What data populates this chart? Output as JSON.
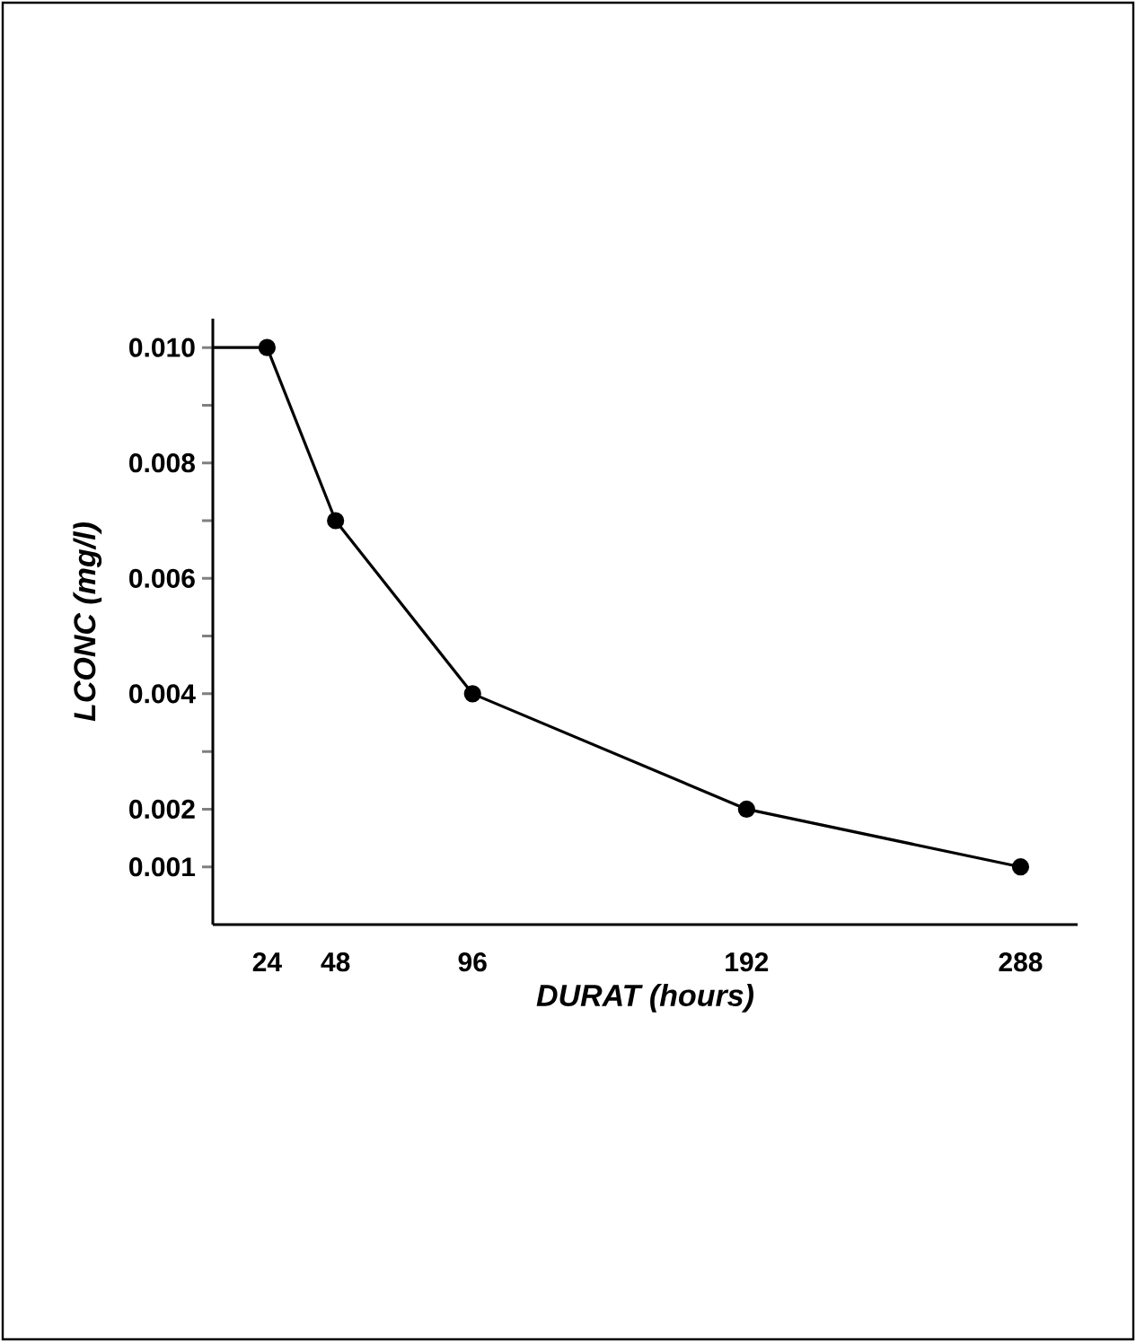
{
  "chart_data": {
    "type": "line",
    "xlabel": "DURAT (hours)",
    "ylabel": "LCONC (mg/l)",
    "xlim": [
      5,
      308
    ],
    "ylim": [
      0,
      0.0105
    ],
    "xticks": [
      24,
      48,
      96,
      192,
      288
    ],
    "yticks": [
      {
        "value": 0.001,
        "label": "0.001"
      },
      {
        "value": 0.002,
        "label": "0.002"
      },
      {
        "value": 0.003,
        "label": null
      },
      {
        "value": 0.004,
        "label": "0.004"
      },
      {
        "value": 0.005,
        "label": null
      },
      {
        "value": 0.006,
        "label": "0.006"
      },
      {
        "value": 0.007,
        "label": null
      },
      {
        "value": 0.008,
        "label": "0.008"
      },
      {
        "value": 0.009,
        "label": null
      },
      {
        "value": 0.01,
        "label": "0.010"
      }
    ],
    "marker": "circle",
    "line_style": "solid",
    "grid": false,
    "series": [
      {
        "x": [
          24,
          48,
          96,
          192,
          288
        ],
        "values": [
          0.01,
          0.007,
          0.004,
          0.002,
          0.001
        ],
        "color": "#000000"
      },
      {
        "x": [
          5,
          24
        ],
        "values": [
          0.01,
          0.01
        ],
        "color": "#000000",
        "marker": "none"
      }
    ]
  }
}
